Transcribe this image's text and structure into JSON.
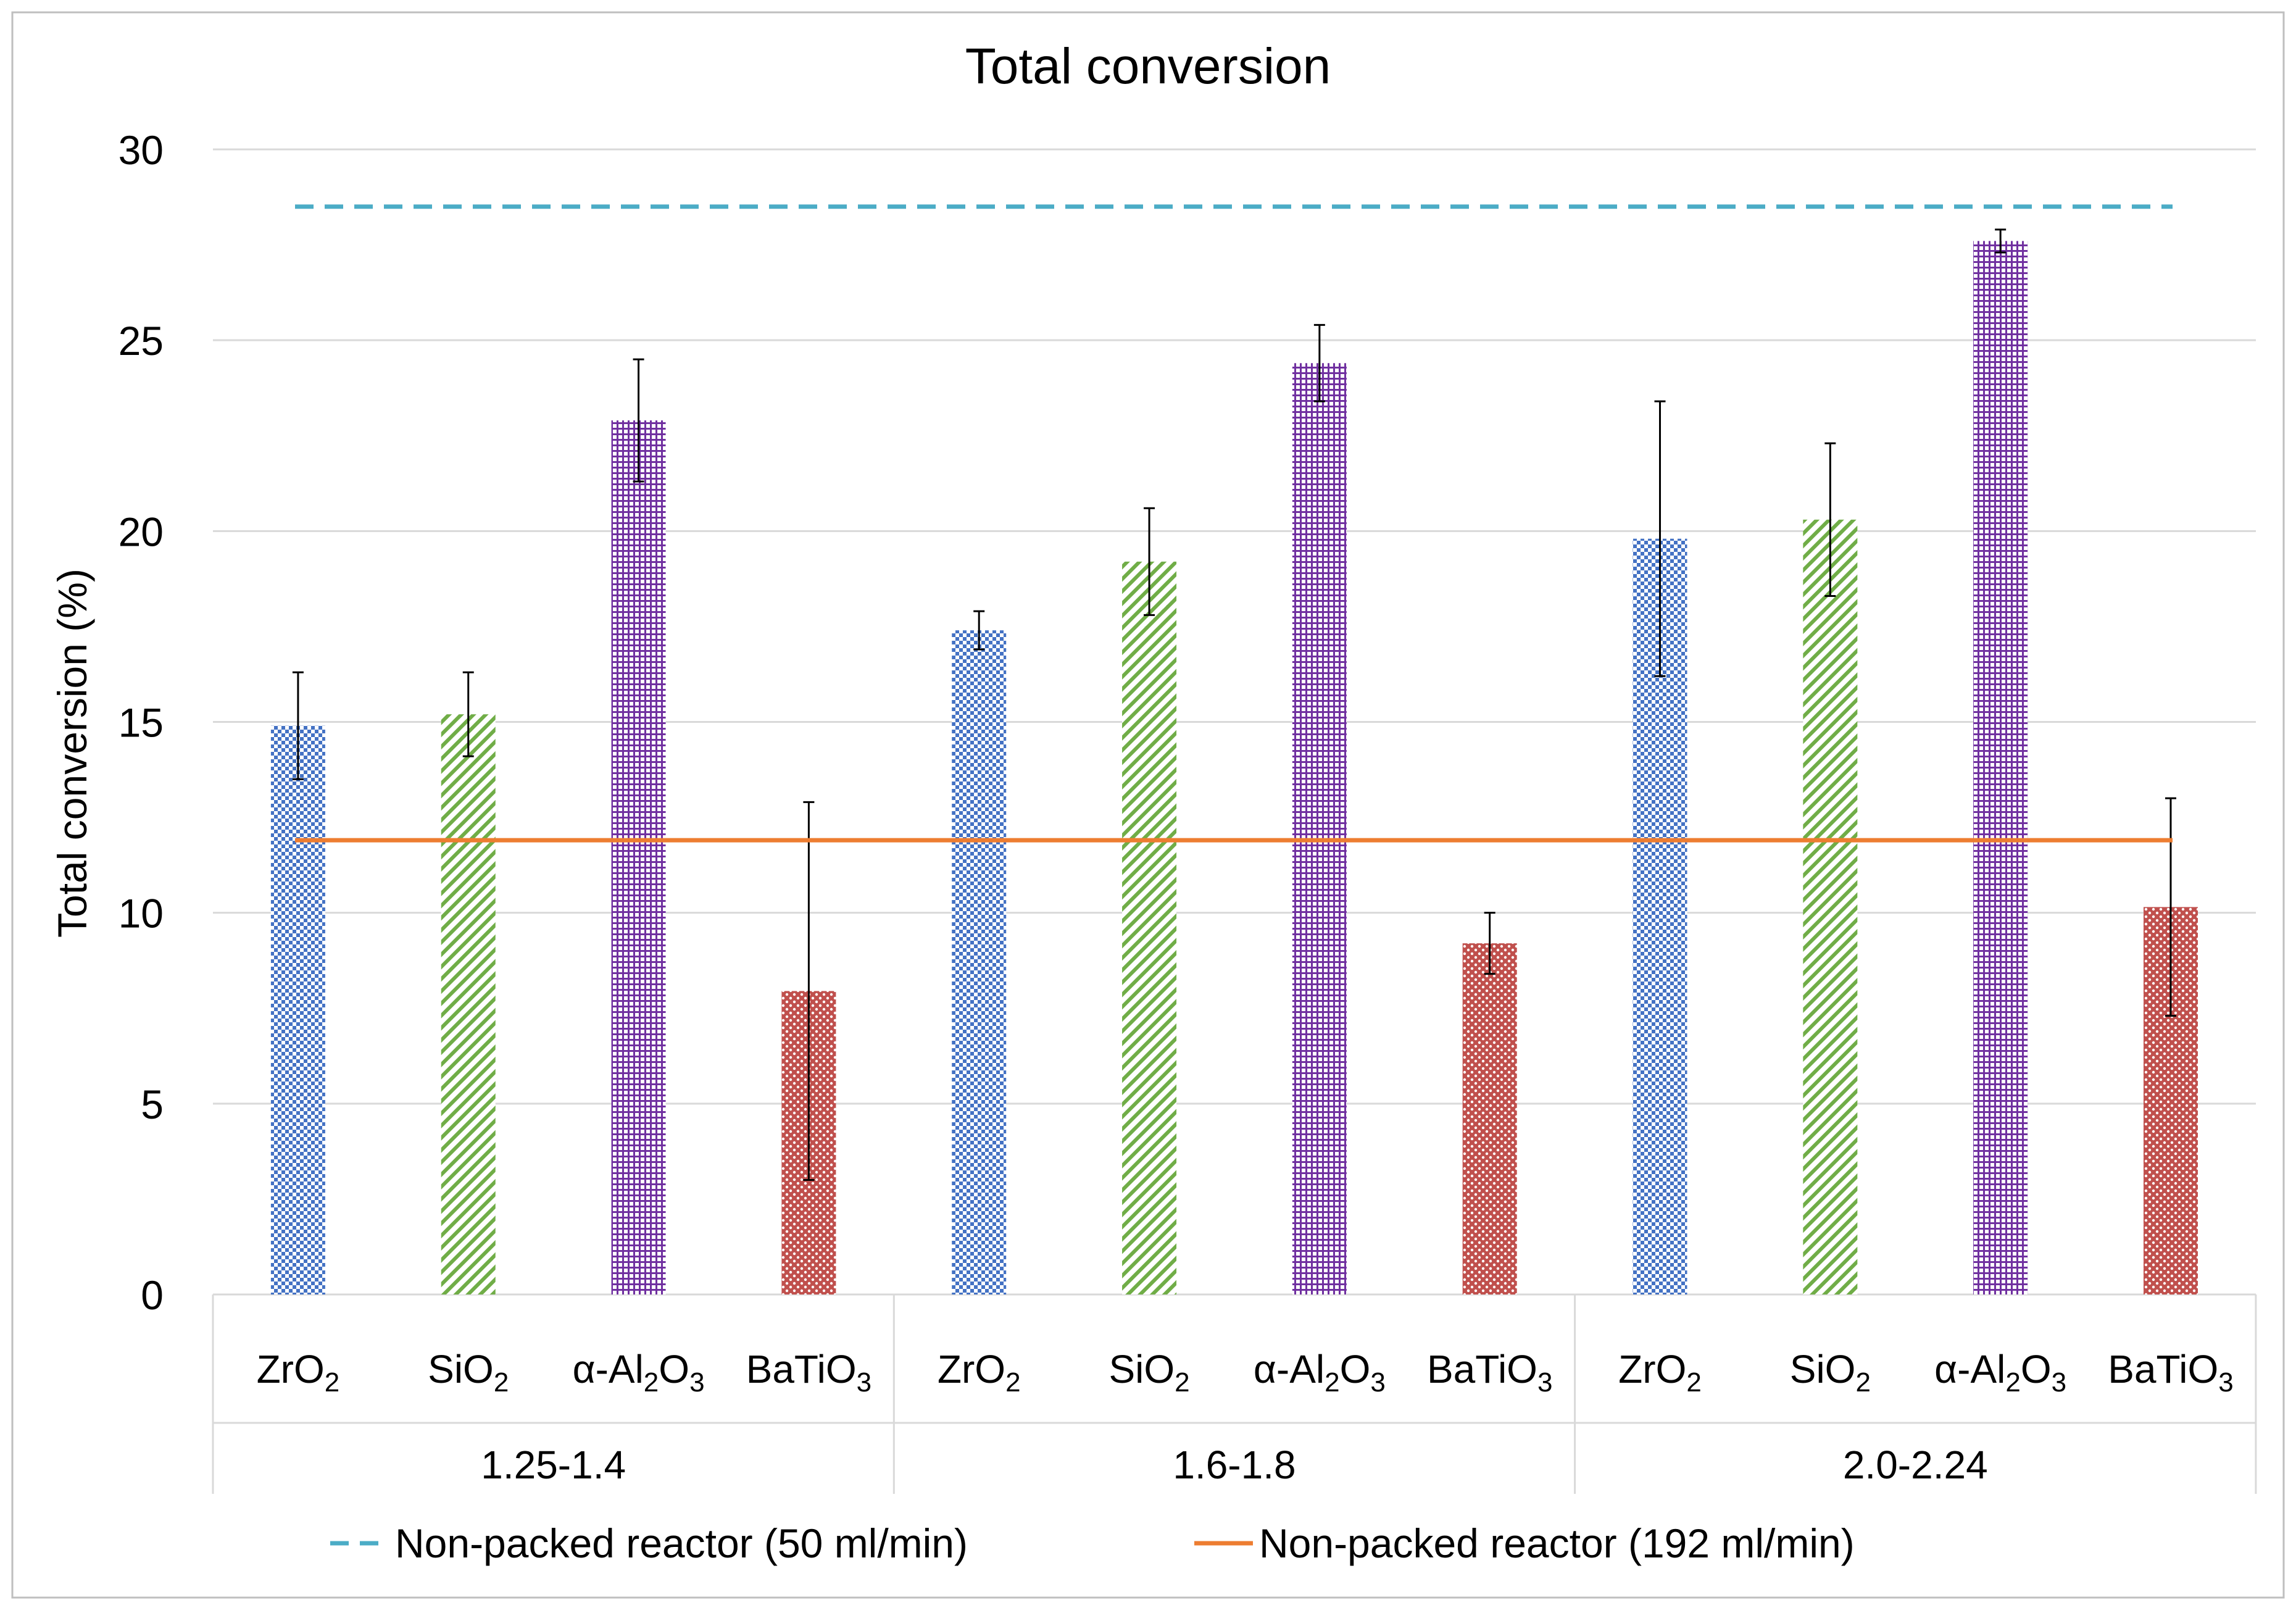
{
  "chart_data": {
    "type": "bar",
    "title": "Total conversion",
    "xlabel": "",
    "ylabel": "Total conversion (%)",
    "ylim": [
      0,
      30
    ],
    "yticks": [
      0,
      5,
      10,
      15,
      20,
      25,
      30
    ],
    "grid": true,
    "legend_position": "bottom",
    "groups": [
      "1.25-1.4",
      "1.6-1.8",
      "2.0-2.24"
    ],
    "series": [
      {
        "name": "ZrO2",
        "label_base": "ZrO",
        "label_sub": "2",
        "label_after": "",
        "color": "#4472c4",
        "pattern": "checker",
        "values": [
          14.9,
          17.4,
          19.8
        ],
        "errors": [
          1.4,
          0.5,
          3.6
        ]
      },
      {
        "name": "SiO2",
        "label_base": "SiO",
        "label_sub": "2",
        "label_after": "",
        "color": "#70ad47",
        "pattern": "diagonal",
        "values": [
          15.2,
          19.2,
          20.3
        ],
        "errors": [
          1.1,
          1.4,
          2.0
        ]
      },
      {
        "name": "α-Al2O3",
        "label_base": "α-Al",
        "label_sub": "2",
        "label_after": "O",
        "label_sub2": "3",
        "color": "#7030a0",
        "pattern": "grid",
        "values": [
          22.9,
          24.4,
          27.6
        ],
        "errors": [
          1.6,
          1.0,
          0.3
        ]
      },
      {
        "name": "BaTiO3",
        "label_base": "BaTiO",
        "label_sub": "3",
        "label_after": "",
        "color": "#c0504d",
        "pattern": "dots",
        "values": [
          7.95,
          9.2,
          10.15
        ],
        "errors": [
          4.95,
          0.8,
          2.85
        ]
      }
    ],
    "reference_lines": [
      {
        "name": "Non-packed reactor (50 ml/min)",
        "value": 28.5,
        "color": "#4bacc6",
        "style": "dashed"
      },
      {
        "name": "Non-packed reactor (192 ml/min)",
        "value": 11.9,
        "color": "#ed7d31",
        "style": "solid"
      }
    ]
  }
}
